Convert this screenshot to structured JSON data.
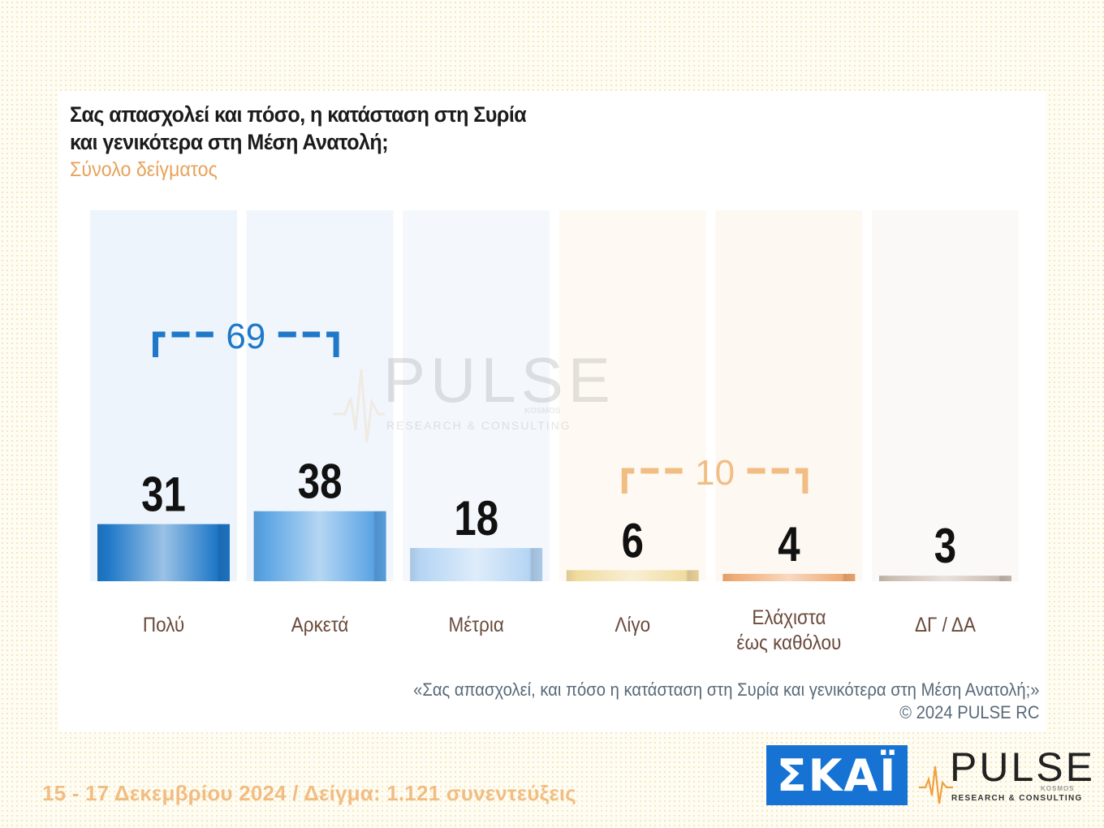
{
  "title_lines": [
    "Σας απασχολεί και πόσο, η κατάσταση στη Συρία",
    "και γενικότερα στη Μέση Ανατολή;"
  ],
  "subtitle": "Σύνολο δείγματος",
  "footnote": {
    "quote": "«Σας απασχολεί, και πόσο η κατάσταση στη Συρία και γενικότερα στη Μέση Ανατολή;»",
    "copyright": "©  2024  PULSE RC"
  },
  "bottom_line": "15 - 17 Δεκεμβρίου 2024  /  Δείγμα:  1.121 συνεντεύξεις",
  "logos": {
    "skai": "ΣΚΑΪ",
    "pulse": "PULSE",
    "pulse_sub": "RESEARCH & CONSULTING",
    "pulse_kosmos": "KOSMOS"
  },
  "watermark": {
    "word": "PULSE",
    "sub": "RESEARCH & CONSULTING",
    "kosmos": "KOSMOS"
  },
  "chart_data": {
    "type": "bar",
    "categories": [
      "Πολύ",
      "Αρκετά",
      "Μέτρια",
      "Λίγο",
      "Ελάχιστα\nέως καθόλου",
      "ΔΓ / ΔΑ"
    ],
    "values": [
      31,
      38,
      18,
      6,
      4,
      3
    ],
    "ylim": [
      0,
      100
    ],
    "grid": false,
    "legend": "none",
    "bar_colors": [
      "#1f78c8",
      "#5ba4e4",
      "#b5d5f4",
      "#f1dba0",
      "#f0ab74",
      "#cbbcb0"
    ],
    "column_background_colors": [
      "#eef4fb",
      "#f0f6fc",
      "#f4f8fd",
      "#fefaf3",
      "#fef8f2",
      "#faf9f8"
    ],
    "group_annotations": [
      {
        "value": "69",
        "from_index": 0,
        "to_index": 1,
        "color": "#1f78c8"
      },
      {
        "value": "10",
        "from_index": 3,
        "to_index": 4,
        "color": "#f1bd83"
      }
    ],
    "label_color": "#6a4a3c"
  }
}
